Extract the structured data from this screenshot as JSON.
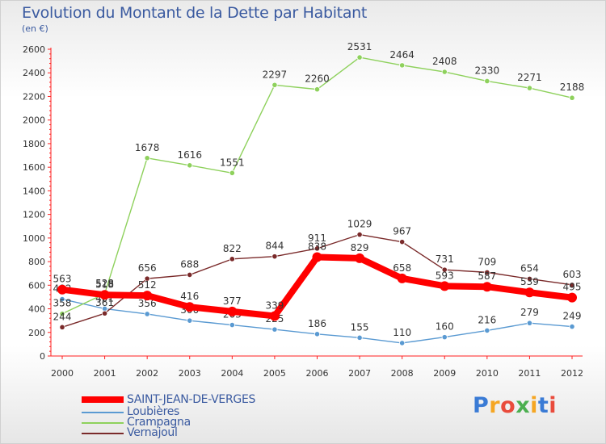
{
  "chart_data": {
    "type": "line",
    "title": "Evolution du Montant de la Dette par Habitant",
    "subtitle": "(en €)",
    "x": [
      "2000",
      "2001",
      "2002",
      "2003",
      "2004",
      "2005",
      "2006",
      "2007",
      "2008",
      "2009",
      "2010",
      "2011",
      "2012"
    ],
    "ylim": [
      0,
      2600
    ],
    "yticks": [
      0,
      200,
      400,
      600,
      800,
      1000,
      1200,
      1400,
      1600,
      1800,
      2000,
      2200,
      2400,
      2600
    ],
    "grid": false,
    "legend_position": "bottom-left",
    "series": [
      {
        "name": "Loubières",
        "color": "#5a9ad2",
        "values": [
          482,
          401,
          356,
          300,
          263,
          225,
          186,
          155,
          110,
          160,
          216,
          279,
          249
        ]
      },
      {
        "name": "Crampagna",
        "color": "#8ed15c",
        "values": [
          358,
          528,
          1678,
          1616,
          1551,
          2297,
          2260,
          2531,
          2464,
          2408,
          2330,
          2271,
          2188
        ]
      },
      {
        "name": "Vernajoul",
        "color": "#7a2a2a",
        "values": [
          244,
          361,
          656,
          688,
          822,
          844,
          911,
          1029,
          967,
          731,
          709,
          654,
          603
        ]
      },
      {
        "name": "SAINT-JEAN-DE-VERGES",
        "color": "#ff0000",
        "values": [
          563,
          518,
          512,
          416,
          377,
          339,
          838,
          829,
          658,
          593,
          587,
          539,
          495
        ]
      }
    ]
  },
  "legend": {
    "items": [
      {
        "label": "SAINT-JEAN-DE-VERGES",
        "color": "#ff0000",
        "thickness": "thick"
      },
      {
        "label": "Loubières",
        "color": "#5a9ad2",
        "thickness": "thin"
      },
      {
        "label": "Crampagna",
        "color": "#8ed15c",
        "thickness": "thin"
      },
      {
        "label": "Vernajoul",
        "color": "#7a2a2a",
        "thickness": "thin"
      }
    ]
  },
  "brand": {
    "letters": [
      "P",
      "r",
      "o",
      "x",
      "i",
      "t",
      "i"
    ],
    "colors": [
      "#3a7bd5",
      "#f5a623",
      "#e94b3c",
      "#4caf50",
      "#f5a623",
      "#3a7bd5",
      "#e94b3c"
    ]
  }
}
